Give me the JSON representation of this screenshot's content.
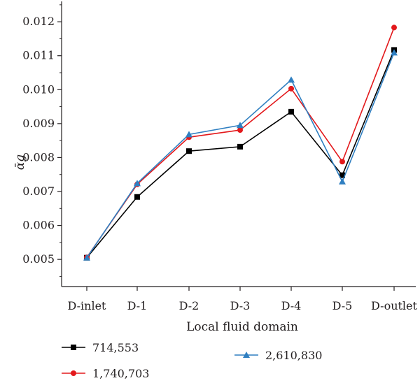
{
  "chart_data": {
    "type": "line",
    "categories": [
      "D-inlet",
      "D-1",
      "D-2",
      "D-3",
      "D-4",
      "D-5",
      "D-outlet"
    ],
    "series": [
      {
        "name": "714,553",
        "color": "#000000",
        "marker": "square",
        "values": [
          0.00505,
          0.00684,
          0.00819,
          0.00832,
          0.00935,
          0.00748,
          0.01117
        ]
      },
      {
        "name": "1,740,703",
        "color": "#e3191c",
        "marker": "circle",
        "values": [
          0.00506,
          0.00721,
          0.0086,
          0.00881,
          0.01003,
          0.00788,
          0.01183
        ]
      },
      {
        "name": "2,610,830",
        "color": "#2f7fc1",
        "marker": "triangle",
        "values": [
          0.00505,
          0.00724,
          0.00868,
          0.00895,
          0.01029,
          0.00729,
          0.01109
        ]
      }
    ],
    "xlabel": "Local fluid domain",
    "ylabel": "ᾱg",
    "ylim": [
      0.0042,
      0.0126
    ],
    "yticks": [
      "0.005",
      "0.006",
      "0.007",
      "0.008",
      "0.009",
      "0.010",
      "0.011",
      "0.012"
    ],
    "ytick_values": [
      0.005,
      0.006,
      0.007,
      0.008,
      0.009,
      0.01,
      0.011,
      0.012
    ],
    "grid": false,
    "legend_position": "bottom"
  }
}
